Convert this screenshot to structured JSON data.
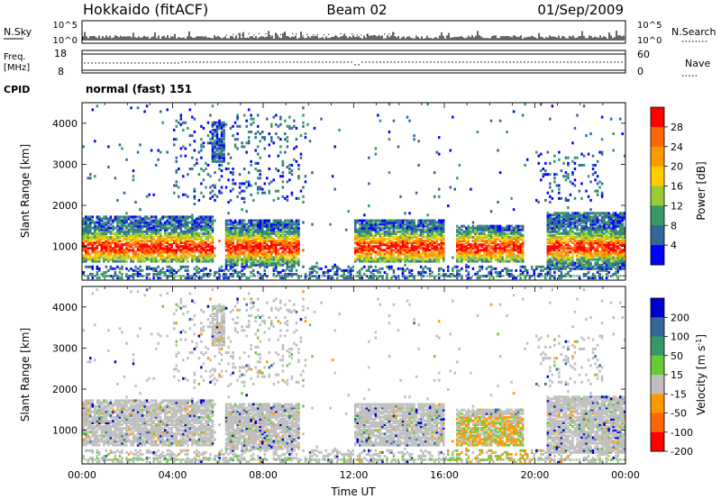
{
  "header": {
    "station": "Hokkaido (fitACF)",
    "beam": "Beam 02",
    "date": "01/Sep/2009"
  },
  "strip_nsky": {
    "label": "N.Sky",
    "ticks": [
      "10^5",
      "10^0"
    ],
    "right_ticks": [
      "10^5",
      "10^0"
    ],
    "right_label": "N.Search"
  },
  "strip_freq": {
    "label_line1": "Freq.",
    "label_line2": "[MHz]",
    "ticks": [
      "18",
      "8"
    ],
    "right_ticks": [
      "60",
      "0"
    ],
    "right_label": "Nave"
  },
  "cpid": {
    "label": "CPID",
    "value": "normal (fast) 151"
  },
  "chart_data": [
    {
      "type": "heatmap",
      "name": "power",
      "ylabel": "Slant Range [km]",
      "yticks": [
        "4000",
        "3000",
        "2000",
        "1000"
      ],
      "ylim": [
        180,
        4500
      ],
      "xlim": [
        0,
        24
      ],
      "colorbar": {
        "label": "Power [dB]",
        "ticks": [
          "28",
          "24",
          "20",
          "16",
          "12",
          "8",
          "4"
        ],
        "colors": [
          "#ff0000",
          "#ff6600",
          "#ff9900",
          "#ffcc00",
          "#99cc33",
          "#339966",
          "#336699",
          "#0000ff"
        ]
      },
      "features": [
        {
          "t0": 0.0,
          "t1": 5.8,
          "r0": 600,
          "r1": 1700,
          "level": "mixed"
        },
        {
          "t0": 6.3,
          "t1": 9.6,
          "r0": 500,
          "r1": 1600,
          "level": "mixed"
        },
        {
          "t0": 12.0,
          "t1": 16.0,
          "r0": 600,
          "r1": 1600,
          "level": "mixed"
        },
        {
          "t0": 16.5,
          "t1": 19.5,
          "r0": 600,
          "r1": 1500,
          "level": "mixed"
        },
        {
          "t0": 20.5,
          "t1": 24.0,
          "r0": 400,
          "r1": 1800,
          "level": "mixed"
        },
        {
          "t0": 5.7,
          "t1": 6.3,
          "r0": 3000,
          "r1": 4000,
          "level": "mixed"
        }
      ]
    },
    {
      "type": "heatmap",
      "name": "velocity",
      "ylabel": "Slant Range [km]",
      "yticks": [
        "4000",
        "3000",
        "2000",
        "1000"
      ],
      "ylim": [
        180,
        4500
      ],
      "xlim": [
        0,
        24
      ],
      "xlabel": "Time UT",
      "xticks": [
        "00:00",
        "04:00",
        "08:00",
        "12:00",
        "16:00",
        "20:00",
        "00:00"
      ],
      "colorbar": {
        "label": "Velocity [m s^-1]",
        "ticks": [
          "200",
          "100",
          "50",
          "15",
          "-15",
          "-50",
          "-100",
          "-200"
        ],
        "colors": [
          "#0000cc",
          "#336699",
          "#339966",
          "#66cc33",
          "#bfbfbf",
          "#ff9900",
          "#ff6600",
          "#ff0000"
        ]
      }
    }
  ]
}
